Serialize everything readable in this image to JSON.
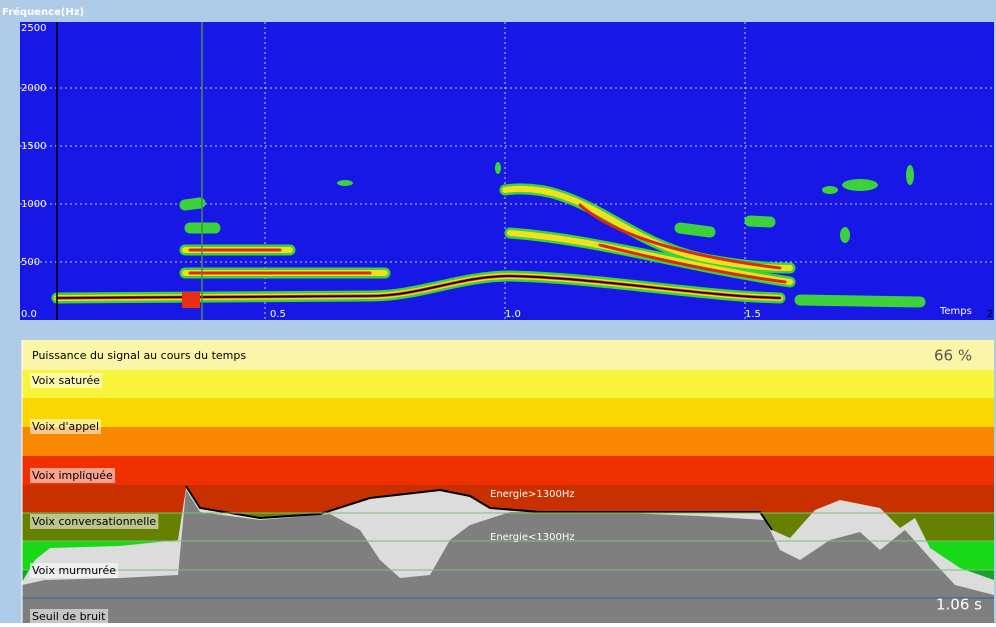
{
  "window": {
    "spectrogram": {
      "y_axis_title": "Fréquence(Hz)",
      "y_ticks": [
        "2500",
        "2000",
        "1500",
        "1000",
        "500",
        "0.0"
      ],
      "x_ticks": [
        "0.5",
        "1.0",
        "1.5"
      ],
      "x_axis_title": "Temps",
      "x_end": "2"
    },
    "power": {
      "title": "Puissance du signal au cours du temps",
      "level": "66 %",
      "zones": [
        "Voix saturée",
        "Voix d'appel",
        "Voix impliquée",
        "Voix conversationnelle",
        "Voix murmurée",
        "Seuil de bruit"
      ],
      "high_label": "Energie>1300Hz",
      "low_label": "Energie<1300Hz",
      "time": "1.06 s"
    }
  }
}
